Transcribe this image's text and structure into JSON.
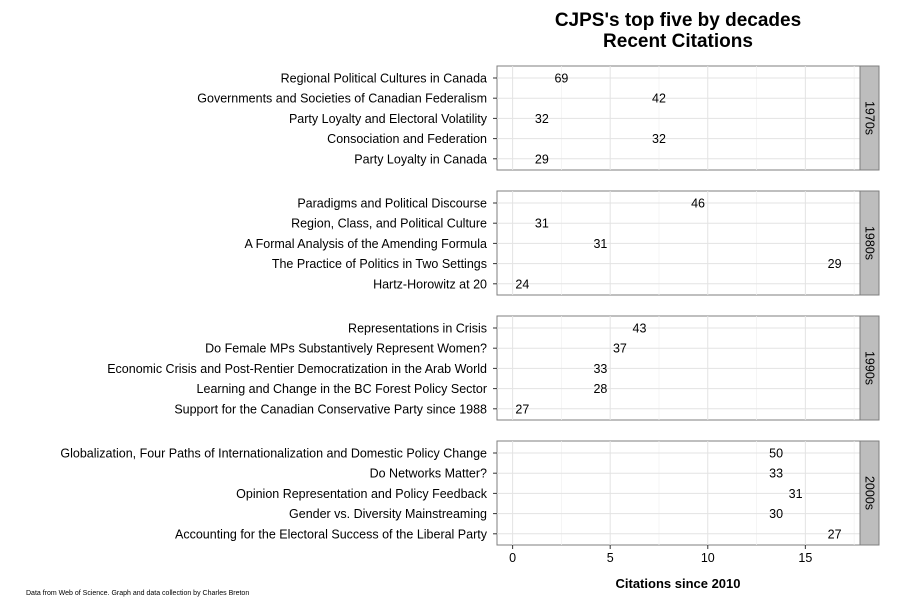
{
  "chart_data": {
    "type": "scatter",
    "title": "CJPS's top five by decades",
    "subtitle": "Recent Citations",
    "xlabel": "Citations since 2010",
    "ylabel": "",
    "xlim": [
      -0.8,
      17.8
    ],
    "xticks": [
      0,
      5,
      10,
      15
    ],
    "grid": true,
    "legend": "none",
    "facet_strip_color": "#bdbdbd",
    "facets": [
      {
        "label": "1970s",
        "points": [
          {
            "title": "Regional Political Cultures in Canada",
            "x": 2.5,
            "label": "69"
          },
          {
            "title": "Governments and Societies of Canadian Federalism",
            "x": 7.5,
            "label": "42"
          },
          {
            "title": "Party Loyalty and Electoral Volatility",
            "x": 1.5,
            "label": "32"
          },
          {
            "title": "Consociation and Federation",
            "x": 7.5,
            "label": "32"
          },
          {
            "title": "Party Loyalty in Canada",
            "x": 1.5,
            "label": "29"
          }
        ]
      },
      {
        "label": "1980s",
        "points": [
          {
            "title": "Paradigms and Political Discourse",
            "x": 9.5,
            "label": "46"
          },
          {
            "title": "Region, Class, and Political Culture",
            "x": 1.5,
            "label": "31"
          },
          {
            "title": "A Formal Analysis of the Amending Formula",
            "x": 4.5,
            "label": "31"
          },
          {
            "title": "The Practice of Politics in Two Settings",
            "x": 16.5,
            "label": "29"
          },
          {
            "title": "Hartz-Horowitz at 20",
            "x": 0.5,
            "label": "24"
          }
        ]
      },
      {
        "label": "1990s",
        "points": [
          {
            "title": "Representations in Crisis",
            "x": 6.5,
            "label": "43"
          },
          {
            "title": "Do Female MPs Substantively Represent Women?",
            "x": 5.5,
            "label": "37"
          },
          {
            "title": "Economic Crisis and Post-Rentier Democratization in the Arab World",
            "x": 4.5,
            "label": "33"
          },
          {
            "title": "Learning and Change in the BC Forest Policy Sector",
            "x": 4.5,
            "label": "28"
          },
          {
            "title": "Support for the Canadian Conservative Party since 1988",
            "x": 0.5,
            "label": "27"
          }
        ]
      },
      {
        "label": "2000s",
        "points": [
          {
            "title": "Globalization, Four Paths of Internationalization and Domestic Policy Change",
            "x": 13.5,
            "label": "50"
          },
          {
            "title": "Do Networks Matter?",
            "x": 13.5,
            "label": "33"
          },
          {
            "title": "Opinion Representation and Policy Feedback",
            "x": 14.5,
            "label": "31"
          },
          {
            "title": "Gender vs. Diversity Mainstreaming",
            "x": 13.5,
            "label": "30"
          },
          {
            "title": "Accounting for the Electoral Success of the Liberal Party",
            "x": 16.5,
            "label": "27"
          }
        ]
      }
    ]
  },
  "footer": "Data from Web of Science. Graph and data collection by Charles Breton"
}
